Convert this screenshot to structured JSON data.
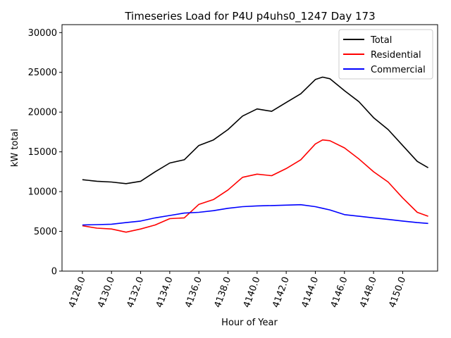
{
  "chart_data": {
    "type": "line",
    "title": "Timeseries Load for P4U p4uhs0_1247  Day 173",
    "xlabel": "Hour of Year",
    "ylabel": "kW total",
    "xlim": [
      4126.6,
      4152.4
    ],
    "ylim": [
      0,
      31000
    ],
    "xticks": [
      4128,
      4130,
      4132,
      4134,
      4136,
      4138,
      4140,
      4142,
      4144,
      4146,
      4148,
      4150
    ],
    "xtick_labels": [
      "4128.0",
      "4130.0",
      "4132.0",
      "4134.0",
      "4136.0",
      "4138.0",
      "4140.0",
      "4142.0",
      "4144.0",
      "4146.0",
      "4148.0",
      "4150.0"
    ],
    "yticks": [
      0,
      5000,
      10000,
      15000,
      20000,
      25000,
      30000
    ],
    "ytick_labels": [
      "0",
      "5000",
      "10000",
      "15000",
      "20000",
      "25000",
      "30000"
    ],
    "legend_position": "top-right",
    "x": [
      4128,
      4129,
      4130,
      4131,
      4132,
      4133,
      4134,
      4135,
      4136,
      4137,
      4138,
      4139,
      4140,
      4141,
      4142,
      4143,
      4144,
      4144.5,
      4145,
      4146,
      4147,
      4148,
      4149,
      4150,
      4151,
      4151.75
    ],
    "series": [
      {
        "name": "Total",
        "color": "#000000",
        "values": [
          11500,
          11300,
          11200,
          11000,
          11300,
          12500,
          13600,
          14000,
          15800,
          16500,
          17800,
          19500,
          20400,
          20100,
          21200,
          22300,
          24100,
          24400,
          24200,
          22700,
          21300,
          19300,
          17800,
          15800,
          13800,
          13000
        ]
      },
      {
        "name": "Residential",
        "color": "#ff0000",
        "values": [
          5700,
          5400,
          5300,
          4900,
          5300,
          5800,
          6600,
          6700,
          8400,
          9000,
          10200,
          11800,
          12200,
          12000,
          12900,
          14000,
          16000,
          16500,
          16400,
          15500,
          14100,
          12500,
          11200,
          9200,
          7400,
          6900
        ]
      },
      {
        "name": "Commercial",
        "color": "#0000ff",
        "values": [
          5800,
          5850,
          5900,
          6100,
          6300,
          6700,
          7000,
          7300,
          7400,
          7600,
          7900,
          8100,
          8200,
          8250,
          8300,
          8350,
          8100,
          7900,
          7700,
          7100,
          6900,
          6700,
          6500,
          6300,
          6100,
          6000
        ]
      }
    ]
  }
}
